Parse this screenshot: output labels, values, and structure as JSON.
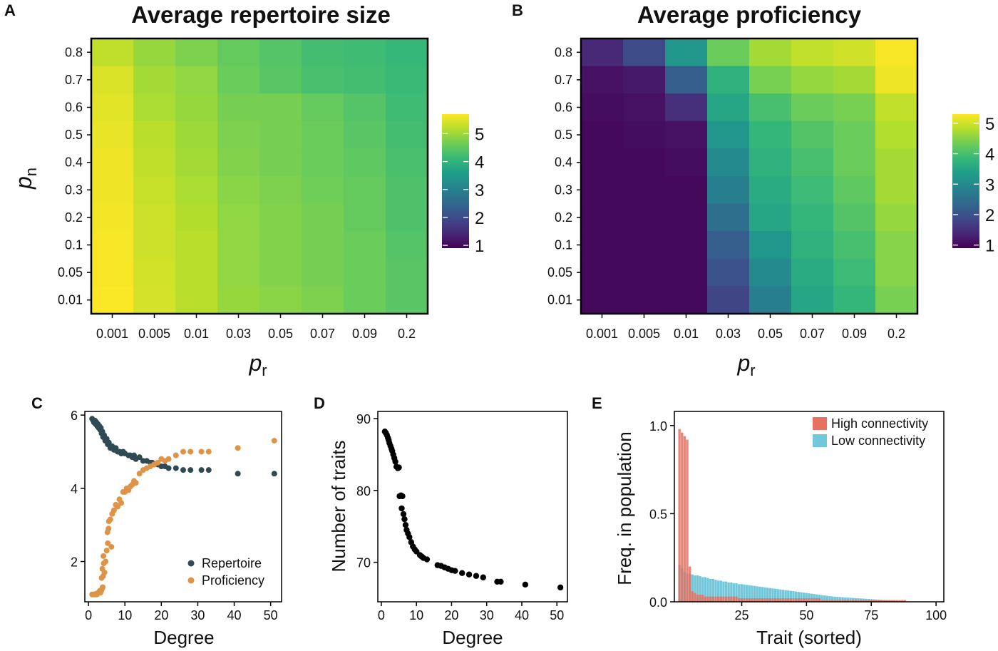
{
  "figure": {
    "panels": [
      "A",
      "B",
      "C",
      "D",
      "E"
    ]
  },
  "chart_data": [
    {
      "panel": "A",
      "type": "heatmap",
      "title": "Average repertoire size",
      "xlabel_main": "p",
      "xlabel_sub": "r",
      "ylabel_main": "p",
      "ylabel_sub": "n",
      "x_categories": [
        "0.001",
        "0.005",
        "0.01",
        "0.03",
        "0.05",
        "0.07",
        "0.09",
        "0.2"
      ],
      "y_categories": [
        "0.8",
        "0.7",
        "0.6",
        "0.5",
        "0.4",
        "0.3",
        "0.2",
        "0.1",
        "0.05",
        "0.01"
      ],
      "colorscale": "viridis",
      "colorbar": {
        "min": 0.9,
        "max": 5.7,
        "ticks": [
          "1",
          "2",
          "3",
          "4",
          "5"
        ]
      },
      "values": [
        [
          5.25,
          4.95,
          4.75,
          4.55,
          4.4,
          4.25,
          4.2,
          4.1
        ],
        [
          5.45,
          5.05,
          4.9,
          4.6,
          4.45,
          4.3,
          4.25,
          4.15
        ],
        [
          5.5,
          5.1,
          4.95,
          4.7,
          4.7,
          4.55,
          4.4,
          4.2
        ],
        [
          5.55,
          5.2,
          5.0,
          4.75,
          4.7,
          4.6,
          4.45,
          4.25
        ],
        [
          5.6,
          5.25,
          5.05,
          4.8,
          4.7,
          4.6,
          4.5,
          4.3
        ],
        [
          5.6,
          5.3,
          5.1,
          4.85,
          4.75,
          4.65,
          4.55,
          4.35
        ],
        [
          5.62,
          5.35,
          5.15,
          4.9,
          4.8,
          4.7,
          4.55,
          4.35
        ],
        [
          5.65,
          5.35,
          5.2,
          4.9,
          4.8,
          4.7,
          4.6,
          4.4
        ],
        [
          5.65,
          5.38,
          5.2,
          4.9,
          4.8,
          4.7,
          4.6,
          4.45
        ],
        [
          5.68,
          5.4,
          5.2,
          4.95,
          4.85,
          4.75,
          4.6,
          4.45
        ]
      ]
    },
    {
      "panel": "B",
      "type": "heatmap",
      "title": "Average proficiency",
      "xlabel_main": "p",
      "xlabel_sub": "r",
      "x_categories": [
        "0.001",
        "0.005",
        "0.01",
        "0.03",
        "0.05",
        "0.07",
        "0.09",
        "0.2"
      ],
      "y_categories": [
        "0.8",
        "0.7",
        "0.6",
        "0.5",
        "0.4",
        "0.3",
        "0.2",
        "0.1",
        "0.05",
        "0.01"
      ],
      "colorscale": "viridis",
      "colorbar": {
        "min": 0.9,
        "max": 5.3,
        "ticks": [
          "1",
          "2",
          "3",
          "4",
          "5"
        ]
      },
      "values": [
        [
          1.4,
          1.9,
          3.2,
          4.3,
          4.7,
          4.9,
          5.0,
          5.25
        ],
        [
          1.1,
          1.2,
          2.2,
          3.7,
          4.4,
          4.6,
          4.7,
          5.2
        ],
        [
          1.05,
          1.1,
          1.5,
          3.5,
          4.0,
          4.3,
          4.4,
          4.9
        ],
        [
          1.0,
          1.05,
          1.1,
          3.2,
          3.8,
          4.1,
          4.3,
          4.8
        ],
        [
          1.0,
          1.0,
          1.05,
          3.0,
          3.7,
          4.0,
          4.3,
          4.7
        ],
        [
          1.0,
          1.0,
          1.0,
          2.8,
          3.6,
          3.9,
          4.2,
          4.7
        ],
        [
          1.0,
          1.0,
          1.0,
          2.5,
          3.5,
          3.8,
          4.1,
          4.6
        ],
        [
          1.0,
          1.0,
          1.0,
          2.2,
          3.2,
          3.7,
          4.0,
          4.5
        ],
        [
          1.0,
          1.0,
          1.0,
          2.0,
          3.0,
          3.6,
          3.9,
          4.5
        ],
        [
          1.0,
          1.0,
          1.0,
          1.8,
          2.8,
          3.5,
          3.8,
          4.4
        ]
      ]
    },
    {
      "panel": "C",
      "type": "scatter",
      "xlabel": "Degree",
      "ylabel": "",
      "xlim": [
        -1,
        53
      ],
      "ylim": [
        0.9,
        6.1
      ],
      "x_ticks": [
        "0",
        "10",
        "20",
        "30",
        "40",
        "50"
      ],
      "y_ticks": [
        "2",
        "4",
        "6"
      ],
      "legend_position": "bottom-right",
      "series": [
        {
          "name": "Repertoire",
          "color": "#2f4a53",
          "points": [
            [
              1,
              5.9
            ],
            [
              1.3,
              5.85
            ],
            [
              1.5,
              5.8
            ],
            [
              1.8,
              5.85
            ],
            [
              2,
              5.75
            ],
            [
              2.2,
              5.8
            ],
            [
              2.4,
              5.7
            ],
            [
              2.6,
              5.75
            ],
            [
              2.8,
              5.65
            ],
            [
              3,
              5.7
            ],
            [
              3.2,
              5.6
            ],
            [
              3.4,
              5.65
            ],
            [
              3.6,
              5.5
            ],
            [
              3.8,
              5.55
            ],
            [
              4,
              5.4
            ],
            [
              4.3,
              5.45
            ],
            [
              4.6,
              5.3
            ],
            [
              5,
              5.35
            ],
            [
              5.3,
              5.2
            ],
            [
              5.6,
              5.25
            ],
            [
              6,
              5.1
            ],
            [
              6.5,
              5.15
            ],
            [
              7,
              5.05
            ],
            [
              7.5,
              5.1
            ],
            [
              8,
              5.0
            ],
            [
              8.5,
              5.0
            ],
            [
              9,
              4.95
            ],
            [
              9.5,
              5.0
            ],
            [
              10,
              4.95
            ],
            [
              11,
              4.9
            ],
            [
              11.5,
              4.9
            ],
            [
              12,
              4.85
            ],
            [
              12.5,
              4.9
            ],
            [
              13,
              4.8
            ],
            [
              14,
              4.85
            ],
            [
              15,
              4.75
            ],
            [
              16,
              4.75
            ],
            [
              17,
              4.7
            ],
            [
              17.5,
              4.7
            ],
            [
              18,
              4.65
            ],
            [
              19,
              4.65
            ],
            [
              20,
              4.6
            ],
            [
              21,
              4.6
            ],
            [
              22,
              4.55
            ],
            [
              24,
              4.55
            ],
            [
              26,
              4.5
            ],
            [
              28,
              4.5
            ],
            [
              31,
              4.5
            ],
            [
              33,
              4.5
            ],
            [
              41,
              4.4
            ],
            [
              51,
              4.4
            ]
          ]
        },
        {
          "name": "Proficiency",
          "color": "#dd9447",
          "points": [
            [
              1,
              1.1
            ],
            [
              1.3,
              1.1
            ],
            [
              1.6,
              1.1
            ],
            [
              1.9,
              1.1
            ],
            [
              2.1,
              1.12
            ],
            [
              2.3,
              1.1
            ],
            [
              2.5,
              1.12
            ],
            [
              2.7,
              1.15
            ],
            [
              2.9,
              1.15
            ],
            [
              3.1,
              1.2
            ],
            [
              3.3,
              1.15
            ],
            [
              3.5,
              1.2
            ],
            [
              3.7,
              1.25
            ],
            [
              3.9,
              1.3
            ],
            [
              3.6,
              1.55
            ],
            [
              4,
              1.6
            ],
            [
              3.8,
              1.8
            ],
            [
              4.2,
              1.95
            ],
            [
              4.1,
              2.15
            ],
            [
              4.4,
              1.7
            ],
            [
              4.7,
              2.0
            ],
            [
              5,
              2.3
            ],
            [
              5.3,
              2.5
            ],
            [
              5.2,
              2.8
            ],
            [
              5.5,
              2.9
            ],
            [
              5.6,
              3.1
            ],
            [
              6,
              3.15
            ],
            [
              6.5,
              3.3
            ],
            [
              6.3,
              2.4
            ],
            [
              7,
              3.4
            ],
            [
              7.5,
              3.55
            ],
            [
              8,
              3.5
            ],
            [
              8.5,
              3.7
            ],
            [
              9,
              3.6
            ],
            [
              9.5,
              3.9
            ],
            [
              10,
              3.9
            ],
            [
              10.5,
              4.0
            ],
            [
              11,
              3.95
            ],
            [
              11.5,
              4.05
            ],
            [
              12,
              4.1
            ],
            [
              12.5,
              4.2
            ],
            [
              13,
              4.15
            ],
            [
              14,
              4.4
            ],
            [
              15,
              4.5
            ],
            [
              16,
              4.55
            ],
            [
              17,
              4.6
            ],
            [
              18,
              4.65
            ],
            [
              19,
              4.7
            ],
            [
              20,
              4.8
            ],
            [
              21,
              4.75
            ],
            [
              22,
              4.8
            ],
            [
              24,
              4.9
            ],
            [
              26,
              5.0
            ],
            [
              28,
              5.0
            ],
            [
              31,
              5.0
            ],
            [
              33,
              5.0
            ],
            [
              41,
              5.1
            ],
            [
              51,
              5.3
            ]
          ]
        }
      ]
    },
    {
      "panel": "D",
      "type": "scatter",
      "xlabel": "Degree",
      "ylabel": "Number of traits",
      "xlim": [
        -1,
        53
      ],
      "ylim": [
        64.5,
        91
      ],
      "x_ticks": [
        "0",
        "10",
        "20",
        "30",
        "40",
        "50"
      ],
      "y_ticks": [
        "70",
        "80",
        "90"
      ],
      "series": [
        {
          "name": "",
          "color": "#000000",
          "points": [
            [
              1,
              88.2
            ],
            [
              1.3,
              88.0
            ],
            [
              1.6,
              87.7
            ],
            [
              1.9,
              87.3
            ],
            [
              2.1,
              87.0
            ],
            [
              2.3,
              86.6
            ],
            [
              2.6,
              86.2
            ],
            [
              2.9,
              85.8
            ],
            [
              3.1,
              85.5
            ],
            [
              3.4,
              85.0
            ],
            [
              3.7,
              84.5
            ],
            [
              4.0,
              84.0
            ],
            [
              4.3,
              83.3
            ],
            [
              4.7,
              83.1
            ],
            [
              5.0,
              83.2
            ],
            [
              5.2,
              79.2
            ],
            [
              5.6,
              79.3
            ],
            [
              6.0,
              79.2
            ],
            [
              5.8,
              77.5
            ],
            [
              6.3,
              76.7
            ],
            [
              6.6,
              76.0
            ],
            [
              6.9,
              75.2
            ],
            [
              7.2,
              74.5
            ],
            [
              7.6,
              74.0
            ],
            [
              8.0,
              73.5
            ],
            [
              8.5,
              72.8
            ],
            [
              9.0,
              72.2
            ],
            [
              9.5,
              71.8
            ],
            [
              10,
              71.5
            ],
            [
              11,
              71.0
            ],
            [
              11.5,
              70.8
            ],
            [
              12,
              70.6
            ],
            [
              13,
              70.4
            ],
            [
              16,
              69.6
            ],
            [
              17,
              69.5
            ],
            [
              18,
              69.3
            ],
            [
              19,
              69.1
            ],
            [
              20,
              68.9
            ],
            [
              21,
              68.8
            ],
            [
              23,
              68.5
            ],
            [
              25,
              68.3
            ],
            [
              27,
              68.1
            ],
            [
              29,
              67.9
            ],
            [
              33,
              67.3
            ],
            [
              34,
              67.3
            ],
            [
              41,
              66.9
            ],
            [
              51,
              66.5
            ]
          ]
        }
      ]
    },
    {
      "panel": "E",
      "type": "bar",
      "xlabel": "Trait (sorted)",
      "ylabel": "Freq. in population",
      "xlim": [
        -1,
        103
      ],
      "ylim": [
        0,
        1.08
      ],
      "x_ticks": [
        "25",
        "50",
        "75",
        "100"
      ],
      "y_ticks": [
        "0.0",
        "0.5",
        "1.0"
      ],
      "legend_position": "top-right",
      "series": [
        {
          "name": "High connectivity",
          "color": "#e8705f",
          "values": [
            0.98,
            0.96,
            0.94,
            0.92,
            0.2,
            0.06,
            0.05,
            0.04,
            0.04,
            0.04,
            0.03,
            0.03,
            0.03,
            0.03,
            0.03,
            0.03,
            0.03,
            0.03,
            0.03,
            0.03,
            0.03,
            0.03,
            0.03,
            0.02,
            0.02,
            0.02,
            0.02,
            0.02,
            0.02,
            0.02,
            0.02,
            0.02,
            0.02,
            0.02,
            0.02,
            0.02,
            0.02,
            0.02,
            0.02,
            0.02,
            0.02,
            0.02,
            0.02,
            0.02,
            0.02,
            0.02,
            0.02,
            0.02,
            0.02,
            0.02,
            0.02,
            0.02,
            0.02,
            0.02,
            0.02,
            0.01,
            0.01,
            0.01,
            0.01,
            0.01,
            0.01,
            0.01,
            0.01,
            0.01,
            0.01,
            0.01,
            0.01,
            0.01,
            0.01,
            0.01,
            0.01,
            0.01,
            0.01,
            0.01,
            0.01,
            0.01,
            0.01,
            0.01,
            0.01,
            0.01,
            0.01,
            0.01,
            0.01,
            0.01,
            0.01,
            0.01,
            0.01,
            0.01
          ]
        },
        {
          "name": "Low connectivity",
          "color": "#72c8da",
          "values": [
            0.21,
            0.19,
            0.17,
            0.16,
            0.16,
            0.155,
            0.15,
            0.15,
            0.145,
            0.14,
            0.14,
            0.135,
            0.13,
            0.13,
            0.125,
            0.12,
            0.12,
            0.115,
            0.115,
            0.11,
            0.11,
            0.105,
            0.105,
            0.1,
            0.1,
            0.098,
            0.096,
            0.094,
            0.092,
            0.09,
            0.088,
            0.086,
            0.084,
            0.082,
            0.08,
            0.078,
            0.076,
            0.074,
            0.072,
            0.07,
            0.068,
            0.066,
            0.064,
            0.062,
            0.06,
            0.058,
            0.056,
            0.054,
            0.052,
            0.05,
            0.048,
            0.046,
            0.044,
            0.042,
            0.04,
            0.038,
            0.036,
            0.034,
            0.032,
            0.03,
            0.029,
            0.028,
            0.027,
            0.026,
            0.025,
            0.024,
            0.023,
            0.022,
            0.021,
            0.02,
            0.019,
            0.018,
            0.017,
            0.016,
            0.015,
            0.014,
            0.013,
            0.012,
            0.011,
            0.01,
            0.009,
            0.008,
            0.007,
            0.006,
            0.005,
            0.004,
            0.003,
            0.002,
            0.002,
            0.001,
            0.001
          ]
        }
      ]
    }
  ]
}
